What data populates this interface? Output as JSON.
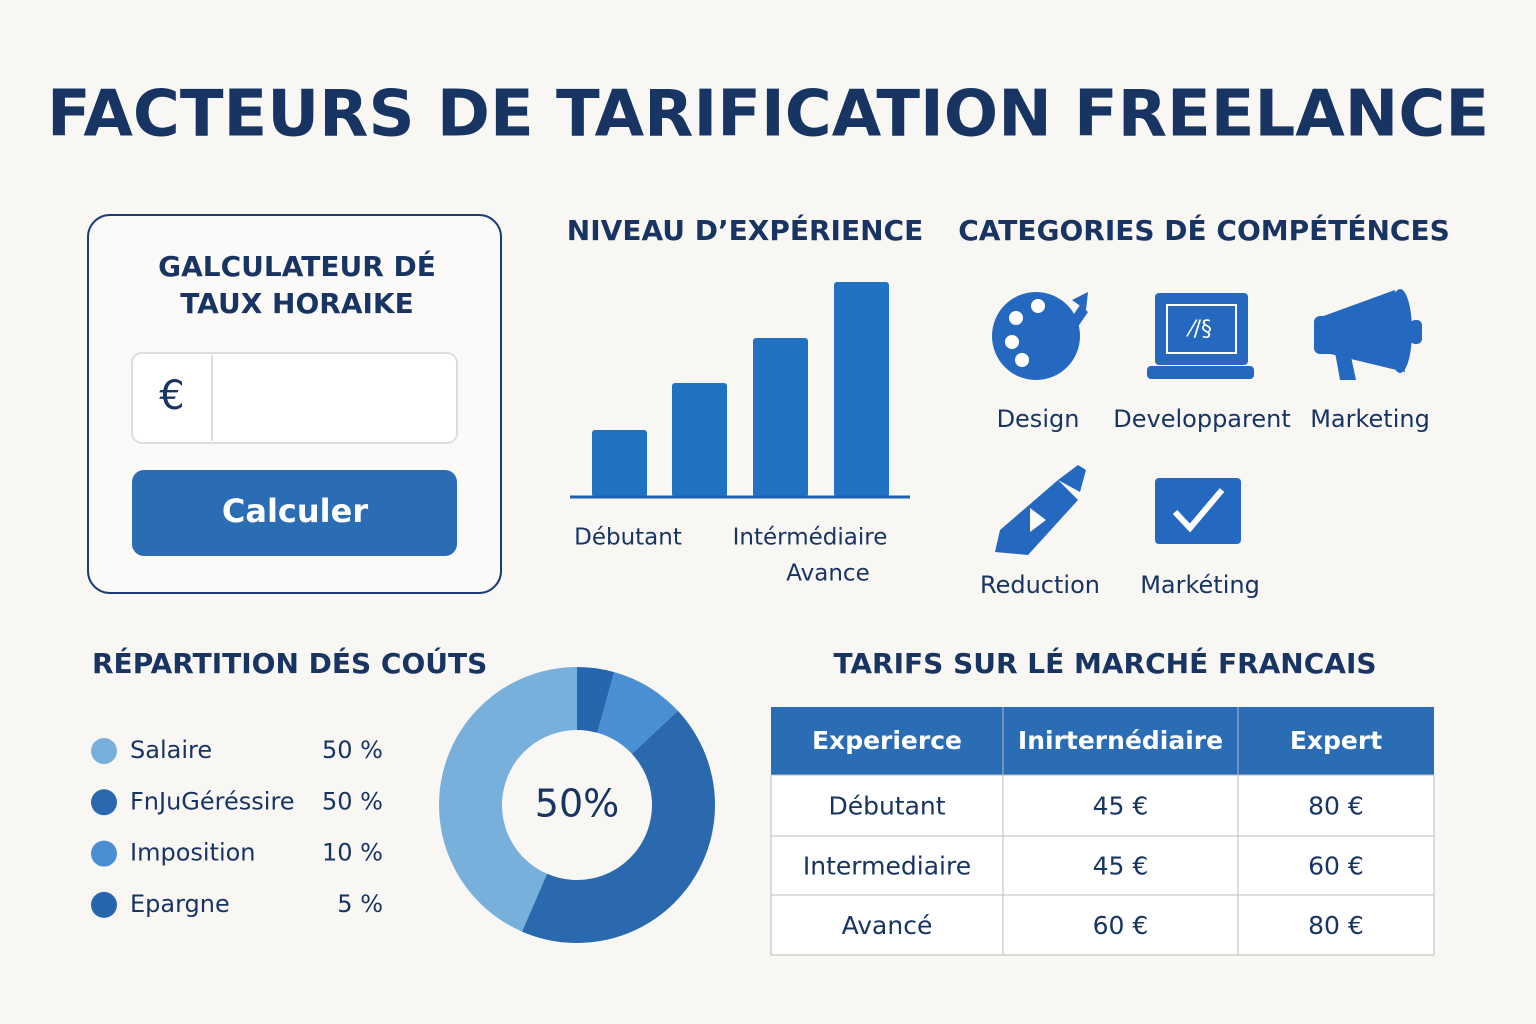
{
  "title": "FACTEURS DE TARIFICATION FREELANCE",
  "calculator": {
    "title_lines": [
      "GALCULATEUR DÉ",
      "TAUX HORAIKE"
    ],
    "currency": "€",
    "button": "Calculer"
  },
  "chart_data": [
    {
      "type": "bar",
      "title": "NIVEAU D’EXPÉRIENCE",
      "categories": [
        "Débutant",
        null,
        "Intérmédiaire",
        "Avance"
      ],
      "values": [
        67,
        114,
        159,
        215
      ],
      "color": "#2272c3"
    },
    {
      "type": "pie",
      "title": "RÉPARTITION DÉS COÚTS",
      "categories": [
        "Salaire",
        "FnJuGéréssire",
        "Imposition",
        "Epargne"
      ],
      "values": [
        50,
        50,
        10,
        5
      ],
      "value_labels": [
        "50 %",
        "50 %",
        "10 %",
        "5 %"
      ],
      "colors": [
        "#78b0dc",
        "#2a69ad",
        "#4a8fd2",
        "#2566ad"
      ],
      "center_label": "50%"
    }
  ],
  "skills": {
    "title": "CATEGORIES DÉ COMPÉTÉNCES",
    "items": [
      "Design",
      "Developparent",
      "Marketing",
      "Reduction",
      "Markéting"
    ]
  },
  "table": {
    "title": "TARIFS SUR LÉ MARCHÉ FRANCAIS",
    "header": [
      "Experierce",
      "Inirternédiaire",
      "Expert"
    ],
    "rows": [
      [
        "Débutant",
        "45 €",
        "80 €"
      ],
      [
        "Intermediaire",
        "45 €",
        "60 €"
      ],
      [
        "Avancé",
        "60 €",
        "80 €"
      ]
    ]
  }
}
